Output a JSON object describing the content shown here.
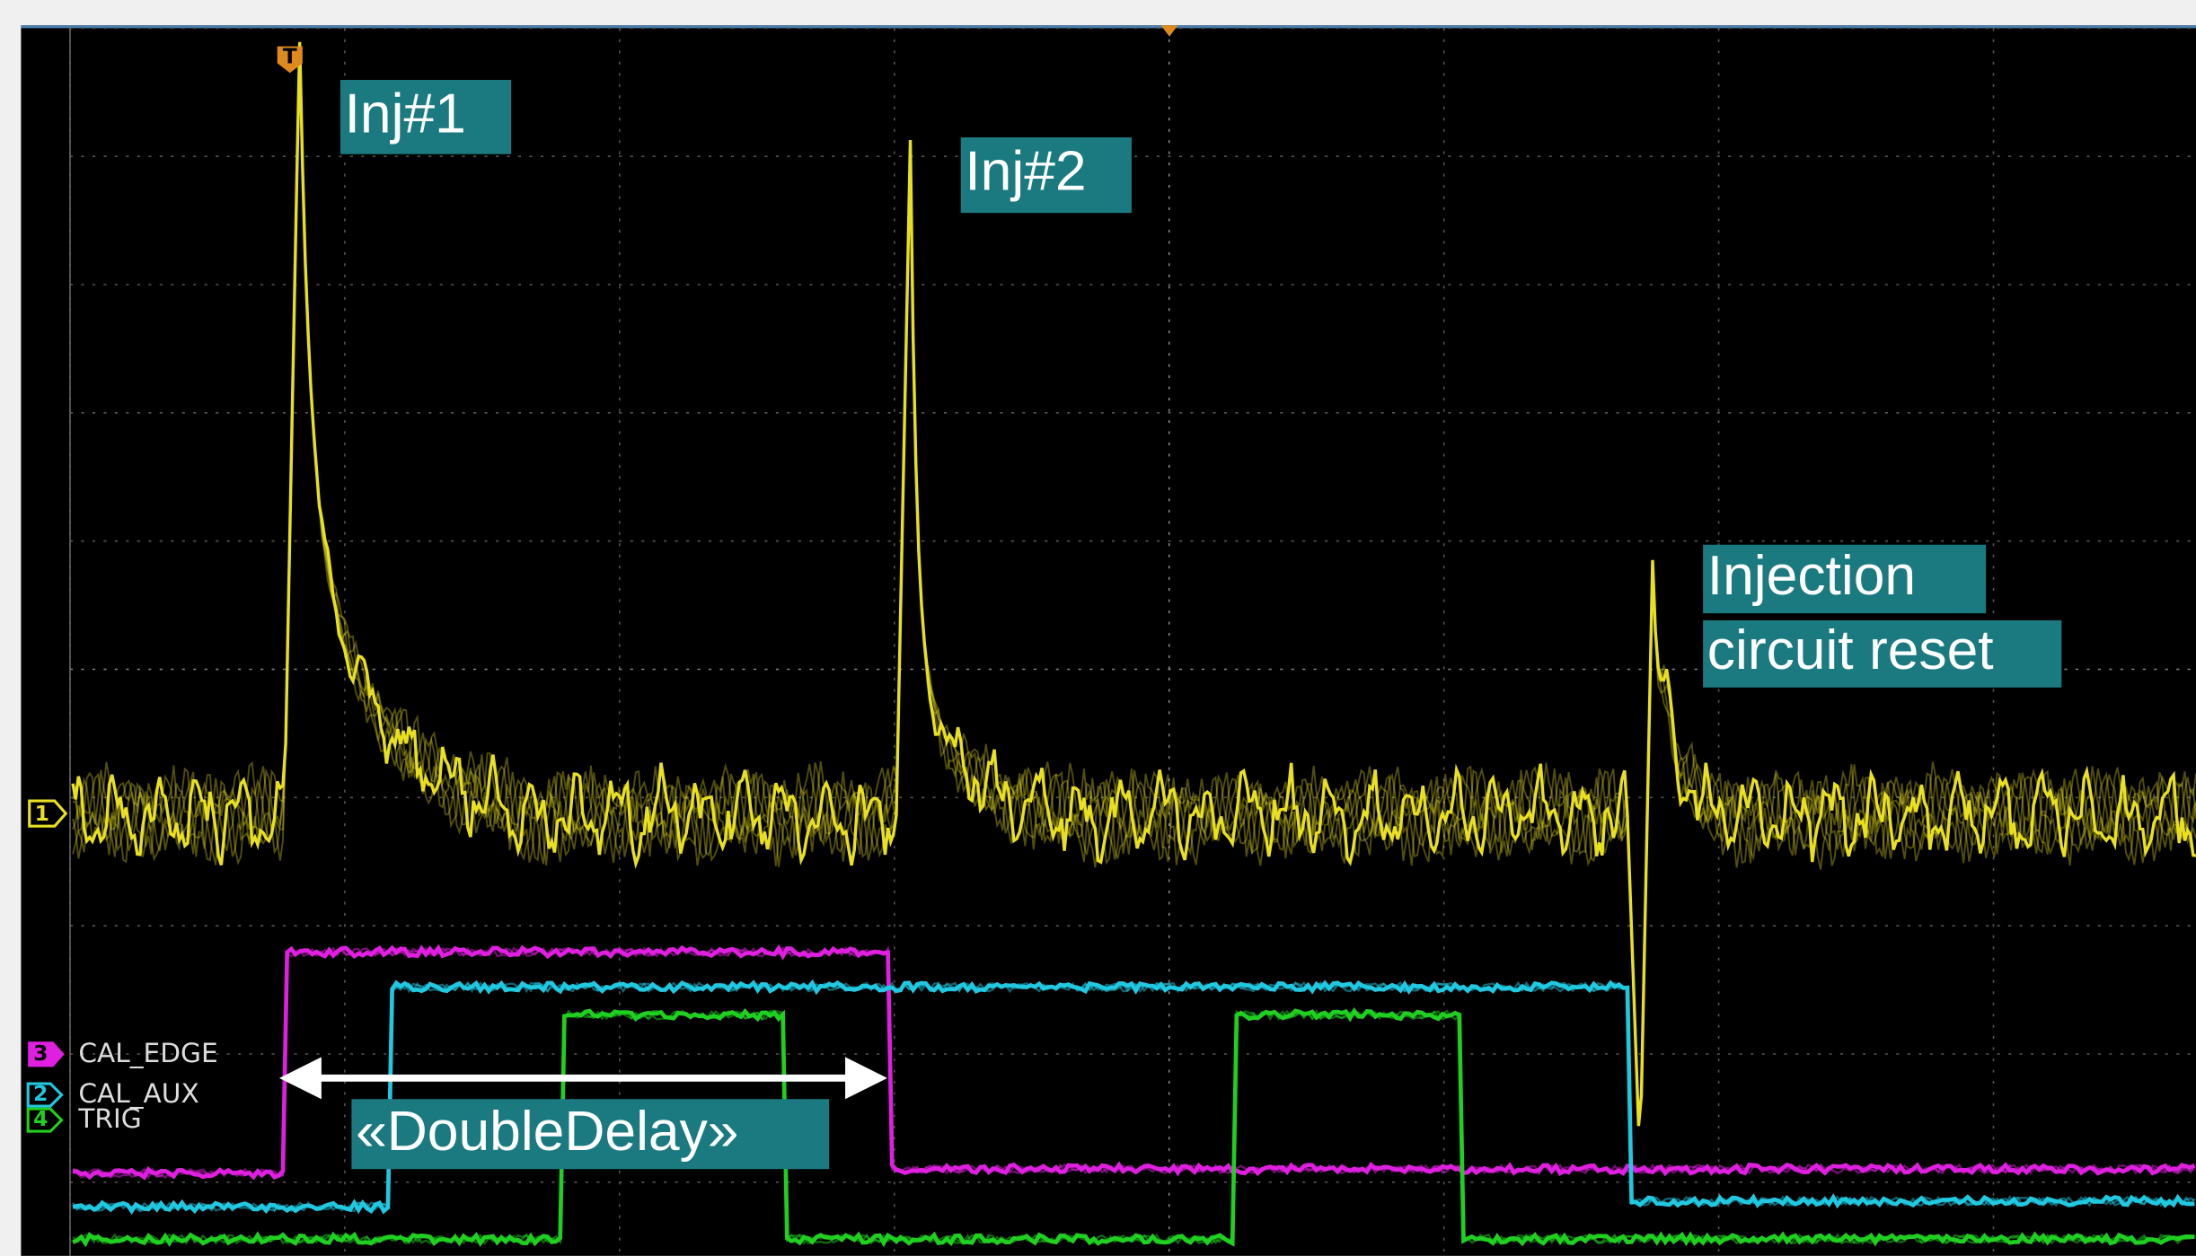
{
  "annotations": {
    "inj1": "Inj#1",
    "inj2": "Inj#2",
    "reset_line1": "Injection",
    "reset_line2": "circuit reset",
    "double_delay": "«DoubleDelay»"
  },
  "markers": {
    "ch1": "1",
    "trigger": "T"
  },
  "channels": [
    {
      "marker": "3",
      "label": "CAL_EDGE"
    },
    {
      "marker": "2",
      "label": "CAL_AUX"
    },
    {
      "marker": "4",
      "label": "TRIG"
    }
  ]
}
